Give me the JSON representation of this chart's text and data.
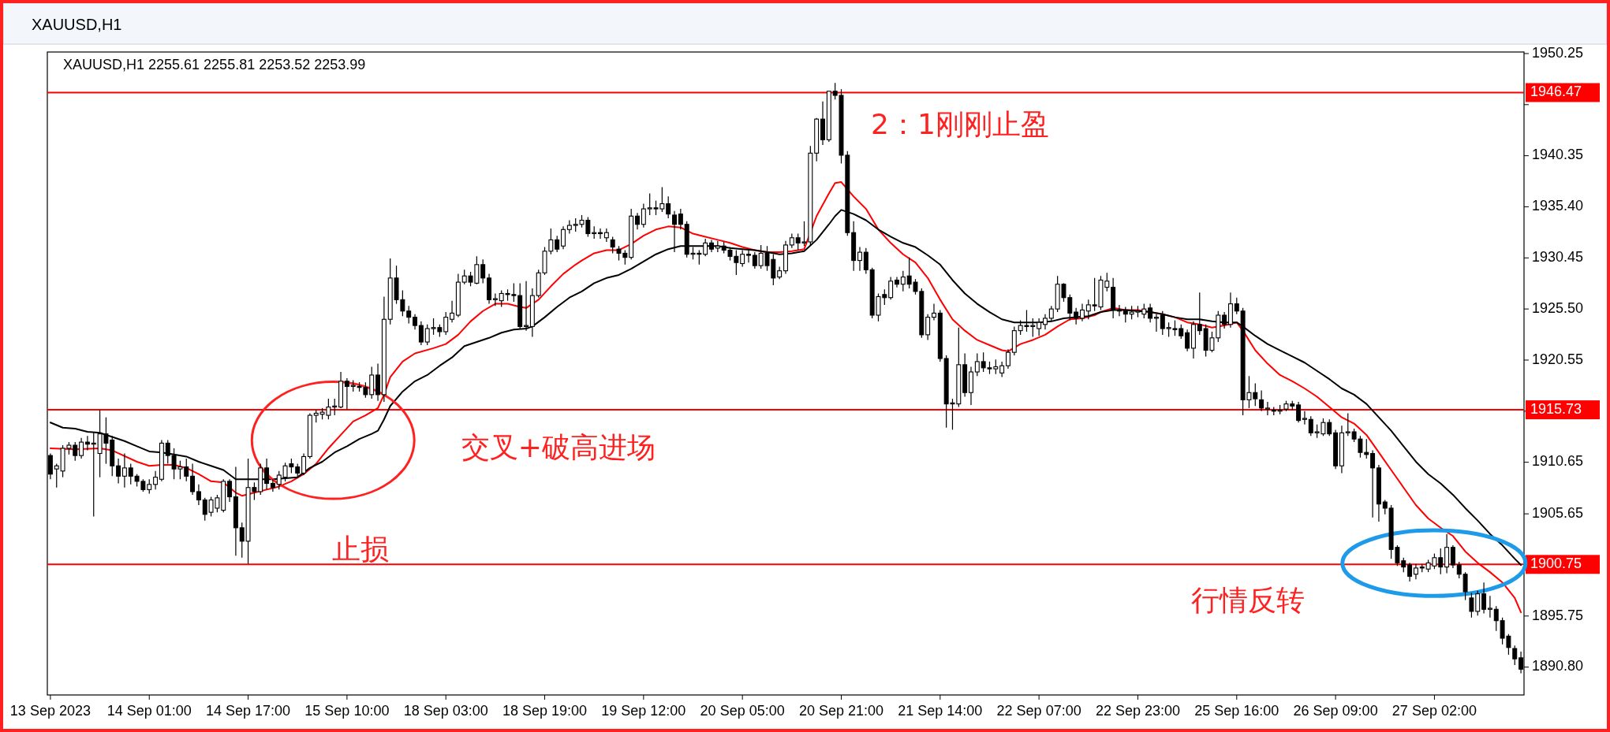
{
  "chart_data": {
    "type": "candlestick",
    "title": "XAUUSD,H1",
    "subtitle": "XAUUSD,H1 2255.61 2255.81 2253.52 2253.99",
    "categories": [
      "13 Sep 2023",
      null,
      null,
      null,
      null,
      null,
      null,
      null,
      null,
      null,
      null,
      null,
      null,
      null,
      null,
      null,
      "14 Sep 01:00",
      null,
      null,
      null,
      null,
      null,
      null,
      null,
      null,
      null,
      null,
      null,
      null,
      null,
      null,
      null,
      "14 Sep 17:00",
      null,
      null,
      null,
      null,
      null,
      null,
      null,
      null,
      null,
      null,
      null,
      null,
      null,
      null,
      null,
      "15 Sep 10:00",
      null,
      null,
      null,
      null,
      null,
      null,
      null,
      null,
      null,
      null,
      null,
      null,
      null,
      null,
      null,
      "18 Sep 03:00",
      null,
      null,
      null,
      null,
      null,
      null,
      null,
      null,
      null,
      null,
      null,
      null,
      null,
      null,
      null,
      "18 Sep 19:00",
      null,
      null,
      null,
      null,
      null,
      null,
      null,
      null,
      null,
      null,
      null,
      null,
      null,
      null,
      null,
      "19 Sep 12:00",
      null,
      null,
      null,
      null,
      null,
      null,
      null,
      null,
      null,
      null,
      null,
      null,
      null,
      null,
      null,
      "20 Sep 05:00",
      null,
      null,
      null,
      null,
      null,
      null,
      null,
      null,
      null,
      null,
      null,
      null,
      null,
      null,
      null,
      "20 Sep 21:00",
      null,
      null,
      null,
      null,
      null,
      null,
      null,
      null,
      null,
      null,
      null,
      null,
      null,
      null,
      null,
      "21 Sep 14:00",
      null,
      null,
      null,
      null,
      null,
      null,
      null,
      null,
      null,
      null,
      null,
      null,
      null,
      null,
      null,
      "22 Sep 07:00",
      null,
      null,
      null,
      null,
      null,
      null,
      null,
      null,
      null,
      null,
      null,
      null,
      null,
      null,
      null,
      "22 Sep 23:00",
      null,
      null,
      null,
      null,
      null,
      null,
      null,
      null,
      null,
      null,
      null,
      null,
      null,
      null,
      null,
      "25 Sep 16:00",
      null,
      null,
      null,
      null,
      null,
      null,
      null,
      null,
      null,
      null,
      null,
      null,
      null,
      null,
      null,
      "26 Sep 09:00",
      null,
      null,
      null,
      null,
      null,
      null,
      null,
      null,
      null,
      null,
      null,
      null,
      null,
      null,
      null,
      "27 Sep 02:00",
      null,
      null,
      null,
      null,
      null,
      null,
      null,
      null,
      null,
      null,
      null,
      null,
      null,
      null
    ],
    "ohlc": [
      [
        1911.3,
        1911.5,
        1909.0,
        1909.5
      ],
      [
        1910.0,
        1910.5,
        1908.2,
        1910.3
      ],
      [
        1909.8,
        1912.3,
        1909.2,
        1912.0
      ],
      [
        1912.0,
        1912.6,
        1911.4,
        1912.3
      ],
      [
        1912.3,
        1912.6,
        1910.8,
        1911.3
      ],
      [
        1911.3,
        1913.0,
        1911.0,
        1912.6
      ],
      [
        1912.6,
        1913.2,
        1911.8,
        1912.4
      ],
      [
        1912.4,
        1913.5,
        1905.4,
        1912.5
      ],
      [
        1911.5,
        1915.7,
        1909.2,
        1913.4
      ],
      [
        1913.4,
        1915.0,
        1910.5,
        1912.5
      ],
      [
        1912.8,
        1913.2,
        1909.3,
        1910.3
      ],
      [
        1910.3,
        1911.0,
        1908.6,
        1909.3
      ],
      [
        1909.3,
        1911.5,
        1908.2,
        1910.1
      ],
      [
        1910.1,
        1910.5,
        1908.5,
        1909.3
      ],
      [
        1909.3,
        1909.5,
        1908.3,
        1908.8
      ],
      [
        1908.8,
        1909.0,
        1907.8,
        1908.0
      ],
      [
        1908.0,
        1909.0,
        1907.6,
        1908.5
      ],
      [
        1908.5,
        1909.8,
        1908.0,
        1909.2
      ],
      [
        1909.0,
        1912.8,
        1908.8,
        1912.5
      ],
      [
        1912.5,
        1912.8,
        1910.5,
        1911.3
      ],
      [
        1911.3,
        1912.0,
        1909.0,
        1910.0
      ],
      [
        1910.0,
        1910.8,
        1909.0,
        1910.2
      ],
      [
        1910.2,
        1911.0,
        1908.8,
        1909.3
      ],
      [
        1909.3,
        1910.5,
        1907.5,
        1907.8
      ],
      [
        1907.8,
        1908.5,
        1906.5,
        1907.0
      ],
      [
        1907.0,
        1907.2,
        1905.0,
        1905.6
      ],
      [
        1905.8,
        1907.3,
        1905.4,
        1907.0
      ],
      [
        1906.2,
        1907.5,
        1905.8,
        1907.2
      ],
      [
        1906.0,
        1909.0,
        1905.8,
        1908.8
      ],
      [
        1908.8,
        1909.0,
        1906.8,
        1907.3
      ],
      [
        1907.3,
        1910.2,
        1901.6,
        1904.3
      ],
      [
        1904.3,
        1904.8,
        1901.4,
        1903.0
      ],
      [
        1903.0,
        1911.0,
        1900.8,
        1908.2
      ],
      [
        1908.2,
        1908.7,
        1907.0,
        1907.8
      ],
      [
        1907.8,
        1910.5,
        1907.5,
        1910.1
      ],
      [
        1910.1,
        1911.0,
        1908.0,
        1908.6
      ],
      [
        1908.6,
        1909.0,
        1907.8,
        1908.2
      ],
      [
        1908.5,
        1909.8,
        1908.0,
        1909.4
      ],
      [
        1909.2,
        1910.6,
        1908.8,
        1910.3
      ],
      [
        1910.5,
        1911.0,
        1909.6,
        1910.2
      ],
      [
        1910.2,
        1910.5,
        1909.2,
        1909.6
      ],
      [
        1909.6,
        1911.5,
        1909.4,
        1911.2
      ],
      [
        1911.2,
        1915.4,
        1911.0,
        1915.2
      ],
      [
        1915.2,
        1915.7,
        1914.5,
        1915.4
      ],
      [
        1915.3,
        1915.9,
        1914.8,
        1915.5
      ],
      [
        1915.2,
        1916.8,
        1914.8,
        1916.0
      ],
      [
        1916.0,
        1916.8,
        1915.2,
        1916.1
      ],
      [
        1916.0,
        1919.4,
        1915.9,
        1918.5
      ],
      [
        1918.5,
        1918.8,
        1915.8,
        1918.0
      ],
      [
        1918.0,
        1918.6,
        1917.5,
        1918.1
      ],
      [
        1918.0,
        1918.4,
        1917.5,
        1917.9
      ],
      [
        1917.9,
        1918.4,
        1916.9,
        1917.2
      ],
      [
        1917.2,
        1919.9,
        1916.8,
        1919.1
      ],
      [
        1919.1,
        1920.2,
        1916.6,
        1917.2
      ],
      [
        1917.2,
        1926.7,
        1916.5,
        1924.5
      ],
      [
        1924.5,
        1930.4,
        1924.0,
        1928.5
      ],
      [
        1928.5,
        1929.7,
        1926.0,
        1926.4
      ],
      [
        1926.4,
        1927.3,
        1924.8,
        1925.3
      ],
      [
        1925.3,
        1925.8,
        1924.1,
        1924.7
      ],
      [
        1924.7,
        1925.0,
        1923.5,
        1923.9
      ],
      [
        1923.9,
        1924.3,
        1922.0,
        1922.3
      ],
      [
        1922.3,
        1924.0,
        1922.0,
        1923.6
      ],
      [
        1923.6,
        1924.6,
        1923.0,
        1923.7
      ],
      [
        1923.7,
        1924.0,
        1922.8,
        1923.3
      ],
      [
        1923.3,
        1925.2,
        1923.0,
        1924.7
      ],
      [
        1924.5,
        1926.3,
        1924.2,
        1925.1
      ],
      [
        1924.9,
        1928.9,
        1924.7,
        1928.1
      ],
      [
        1928.1,
        1929.3,
        1927.9,
        1928.7
      ],
      [
        1928.7,
        1929.1,
        1927.7,
        1928.1
      ],
      [
        1928.0,
        1930.6,
        1927.9,
        1929.8
      ],
      [
        1929.8,
        1930.3,
        1928.0,
        1928.5
      ],
      [
        1928.5,
        1928.9,
        1926.0,
        1926.4
      ],
      [
        1926.4,
        1927.0,
        1925.8,
        1926.5
      ],
      [
        1926.3,
        1927.3,
        1925.7,
        1927.0
      ],
      [
        1927.0,
        1927.4,
        1926.3,
        1926.9
      ],
      [
        1926.9,
        1928.0,
        1926.2,
        1926.8
      ],
      [
        1926.8,
        1928.0,
        1923.6,
        1923.8
      ],
      [
        1923.8,
        1928.2,
        1923.4,
        1923.9
      ],
      [
        1923.8,
        1927.5,
        1922.8,
        1926.8
      ],
      [
        1926.8,
        1929.3,
        1926.6,
        1929.0
      ],
      [
        1929.0,
        1931.5,
        1928.8,
        1931.1
      ],
      [
        1931.1,
        1933.3,
        1930.8,
        1932.2
      ],
      [
        1932.2,
        1932.6,
        1931.0,
        1931.3
      ],
      [
        1931.6,
        1933.5,
        1931.3,
        1933.2
      ],
      [
        1933.2,
        1934.1,
        1932.8,
        1933.6
      ],
      [
        1933.6,
        1934.3,
        1933.0,
        1933.7
      ],
      [
        1933.7,
        1934.6,
        1933.4,
        1934.1
      ],
      [
        1934.1,
        1934.4,
        1932.5,
        1932.8
      ],
      [
        1932.8,
        1933.5,
        1932.3,
        1932.9
      ],
      [
        1932.9,
        1933.3,
        1932.3,
        1932.8
      ],
      [
        1932.4,
        1933.3,
        1932.0,
        1932.9
      ],
      [
        1932.2,
        1932.5,
        1930.9,
        1931.5
      ],
      [
        1931.3,
        1931.6,
        1930.2,
        1930.9
      ],
      [
        1930.9,
        1931.2,
        1929.8,
        1930.5
      ],
      [
        1930.5,
        1935.2,
        1930.3,
        1934.5
      ],
      [
        1934.5,
        1934.8,
        1933.2,
        1933.7
      ],
      [
        1933.7,
        1935.7,
        1933.4,
        1935.2
      ],
      [
        1935.2,
        1936.7,
        1934.6,
        1935.3
      ],
      [
        1935.3,
        1936.0,
        1934.6,
        1935.2
      ],
      [
        1935.2,
        1937.3,
        1934.9,
        1935.7
      ],
      [
        1935.7,
        1936.4,
        1934.3,
        1934.7
      ],
      [
        1934.6,
        1935.0,
        1931.0,
        1933.7
      ],
      [
        1934.7,
        1935.2,
        1933.2,
        1933.7
      ],
      [
        1933.7,
        1934.0,
        1930.5,
        1930.8
      ],
      [
        1930.8,
        1931.5,
        1930.3,
        1930.9
      ],
      [
        1930.9,
        1931.2,
        1929.8,
        1930.8
      ],
      [
        1930.8,
        1932.3,
        1930.6,
        1931.9
      ],
      [
        1931.9,
        1932.2,
        1931.0,
        1931.3
      ],
      [
        1931.4,
        1932.1,
        1931.0,
        1931.6
      ],
      [
        1931.6,
        1932.0,
        1930.9,
        1931.2
      ],
      [
        1931.2,
        1931.5,
        1930.2,
        1930.6
      ],
      [
        1930.6,
        1931.2,
        1928.8,
        1930.0
      ],
      [
        1929.9,
        1931.2,
        1929.6,
        1930.8
      ],
      [
        1930.8,
        1931.3,
        1930.0,
        1930.7
      ],
      [
        1930.7,
        1931.0,
        1929.4,
        1929.7
      ],
      [
        1929.7,
        1931.7,
        1929.4,
        1930.9
      ],
      [
        1930.9,
        1931.6,
        1929.2,
        1929.7
      ],
      [
        1930.3,
        1930.8,
        1927.8,
        1928.5
      ],
      [
        1928.6,
        1929.6,
        1928.4,
        1929.2
      ],
      [
        1929.2,
        1932.1,
        1928.9,
        1931.7
      ],
      [
        1931.7,
        1932.8,
        1931.4,
        1932.4
      ],
      [
        1932.4,
        1932.8,
        1931.2,
        1931.9
      ],
      [
        1931.9,
        1934.0,
        1931.6,
        1932.0
      ],
      [
        1932.0,
        1941.3,
        1931.7,
        1940.6
      ],
      [
        1940.6,
        1944.0,
        1939.8,
        1943.9
      ],
      [
        1943.9,
        1945.6,
        1941.4,
        1941.9
      ],
      [
        1941.9,
        1946.6,
        1941.7,
        1946.6
      ],
      [
        1946.6,
        1947.4,
        1945.8,
        1946.2
      ],
      [
        1946.2,
        1946.8,
        1939.6,
        1940.4
      ],
      [
        1940.4,
        1940.8,
        1932.6,
        1932.9
      ],
      [
        1932.9,
        1934.0,
        1929.2,
        1930.2
      ],
      [
        1930.2,
        1931.5,
        1929.2,
        1931.0
      ],
      [
        1931.0,
        1931.4,
        1928.9,
        1929.3
      ],
      [
        1929.3,
        1929.5,
        1924.6,
        1924.9
      ],
      [
        1924.9,
        1927.0,
        1924.3,
        1926.7
      ],
      [
        1926.9,
        1927.4,
        1925.9,
        1926.6
      ],
      [
        1926.6,
        1928.6,
        1926.4,
        1928.2
      ],
      [
        1928.3,
        1928.6,
        1927.6,
        1927.9
      ],
      [
        1927.9,
        1929.2,
        1927.2,
        1928.6
      ],
      [
        1928.7,
        1930.5,
        1927.5,
        1927.9
      ],
      [
        1928.1,
        1928.4,
        1926.9,
        1927.2
      ],
      [
        1927.2,
        1927.5,
        1922.7,
        1923.0
      ],
      [
        1923.0,
        1925.0,
        1922.5,
        1924.7
      ],
      [
        1924.7,
        1926.0,
        1924.4,
        1925.1
      ],
      [
        1925.1,
        1925.4,
        1920.4,
        1920.7
      ],
      [
        1920.7,
        1921.0,
        1914.0,
        1916.3
      ],
      [
        1916.3,
        1916.8,
        1913.8,
        1916.4
      ],
      [
        1916.3,
        1923.7,
        1916.0,
        1920.1
      ],
      [
        1920.1,
        1921.2,
        1917.0,
        1917.4
      ],
      [
        1917.4,
        1919.9,
        1916.2,
        1919.4
      ],
      [
        1919.4,
        1921.2,
        1919.0,
        1920.4
      ],
      [
        1920.4,
        1921.3,
        1919.4,
        1919.8
      ],
      [
        1919.8,
        1920.4,
        1919.2,
        1919.7
      ],
      [
        1919.7,
        1920.6,
        1919.2,
        1919.9
      ],
      [
        1919.3,
        1920.4,
        1918.9,
        1920.0
      ],
      [
        1920.0,
        1921.6,
        1919.7,
        1921.3
      ],
      [
        1921.3,
        1923.8,
        1921.0,
        1923.4
      ],
      [
        1923.4,
        1924.4,
        1923.0,
        1923.9
      ],
      [
        1923.9,
        1925.4,
        1923.3,
        1923.8
      ],
      [
        1923.8,
        1924.6,
        1922.8,
        1923.9
      ],
      [
        1923.6,
        1924.6,
        1922.9,
        1924.2
      ],
      [
        1924.0,
        1925.0,
        1923.5,
        1924.6
      ],
      [
        1924.6,
        1925.8,
        1924.3,
        1925.5
      ],
      [
        1925.5,
        1928.7,
        1925.2,
        1927.9
      ],
      [
        1927.9,
        1928.0,
        1926.2,
        1926.6
      ],
      [
        1926.6,
        1926.9,
        1924.4,
        1925.1
      ],
      [
        1925.2,
        1925.6,
        1924.0,
        1924.6
      ],
      [
        1924.6,
        1926.0,
        1924.3,
        1925.4
      ],
      [
        1925.3,
        1926.4,
        1924.5,
        1925.9
      ],
      [
        1925.9,
        1928.5,
        1925.3,
        1925.8
      ],
      [
        1925.7,
        1928.7,
        1925.4,
        1928.3
      ],
      [
        1927.6,
        1929.0,
        1927.2,
        1928.2
      ],
      [
        1927.6,
        1928.5,
        1924.6,
        1925.4
      ],
      [
        1925.4,
        1925.9,
        1924.8,
        1925.3
      ],
      [
        1925.4,
        1925.7,
        1924.2,
        1925.0
      ],
      [
        1925.0,
        1925.8,
        1924.5,
        1925.2
      ],
      [
        1925.2,
        1925.8,
        1924.7,
        1925.3
      ],
      [
        1925.0,
        1926.0,
        1924.6,
        1925.5
      ],
      [
        1925.6,
        1926.0,
        1924.2,
        1924.6
      ],
      [
        1924.6,
        1925.0,
        1923.3,
        1924.7
      ],
      [
        1924.9,
        1925.3,
        1923.0,
        1923.6
      ],
      [
        1923.6,
        1924.2,
        1922.8,
        1923.7
      ],
      [
        1923.6,
        1924.4,
        1922.9,
        1923.5
      ],
      [
        1923.6,
        1924.0,
        1922.6,
        1922.9
      ],
      [
        1923.2,
        1923.5,
        1921.4,
        1921.7
      ],
      [
        1921.7,
        1924.3,
        1920.7,
        1924.0
      ],
      [
        1924.0,
        1927.1,
        1923.0,
        1923.4
      ],
      [
        1923.6,
        1924.0,
        1920.9,
        1921.5
      ],
      [
        1921.5,
        1923.3,
        1921.3,
        1922.7
      ],
      [
        1922.7,
        1925.3,
        1922.3,
        1924.9
      ],
      [
        1924.9,
        1925.2,
        1923.6,
        1924.0
      ],
      [
        1924.0,
        1927.1,
        1923.7,
        1926.0
      ],
      [
        1926.0,
        1926.6,
        1925.0,
        1925.3
      ],
      [
        1925.3,
        1925.6,
        1915.2,
        1916.7
      ],
      [
        1916.7,
        1919.0,
        1915.9,
        1917.4
      ],
      [
        1917.4,
        1918.3,
        1916.1,
        1916.8
      ],
      [
        1916.7,
        1917.6,
        1915.6,
        1915.9
      ],
      [
        1915.8,
        1916.5,
        1915.2,
        1915.9
      ],
      [
        1915.7,
        1916.0,
        1915.2,
        1915.6
      ],
      [
        1915.6,
        1916.2,
        1915.3,
        1915.7
      ],
      [
        1915.8,
        1916.6,
        1915.6,
        1916.3
      ],
      [
        1916.3,
        1916.6,
        1915.7,
        1916.1
      ],
      [
        1916.2,
        1916.5,
        1914.5,
        1914.7
      ],
      [
        1914.8,
        1915.6,
        1914.3,
        1914.9
      ],
      [
        1914.8,
        1915.1,
        1913.2,
        1913.5
      ],
      [
        1913.5,
        1914.3,
        1913.0,
        1913.6
      ],
      [
        1913.4,
        1914.9,
        1913.2,
        1914.5
      ],
      [
        1914.5,
        1914.8,
        1913.2,
        1913.4
      ],
      [
        1913.5,
        1913.8,
        1910.0,
        1910.3
      ],
      [
        1910.3,
        1914.2,
        1909.6,
        1913.5
      ],
      [
        1913.5,
        1915.4,
        1913.2,
        1913.6
      ],
      [
        1913.6,
        1913.9,
        1912.6,
        1912.9
      ],
      [
        1912.9,
        1913.2,
        1911.1,
        1911.6
      ],
      [
        1911.6,
        1912.9,
        1911.0,
        1911.4
      ],
      [
        1911.5,
        1911.8,
        1905.3,
        1910.1
      ],
      [
        1910.1,
        1910.4,
        1904.9,
        1906.6
      ],
      [
        1906.8,
        1907.0,
        1905.6,
        1906.2
      ],
      [
        1906.2,
        1906.5,
        1901.3,
        1902.2
      ],
      [
        1902.4,
        1902.6,
        1900.6,
        1900.9
      ],
      [
        1901.1,
        1901.4,
        1900.0,
        1900.5
      ],
      [
        1900.7,
        1900.9,
        1899.1,
        1899.6
      ],
      [
        1899.8,
        1900.8,
        1899.3,
        1900.4
      ],
      [
        1900.5,
        1900.8,
        1900.0,
        1900.4
      ],
      [
        1900.3,
        1901.2,
        1900.0,
        1900.9
      ],
      [
        1900.6,
        1901.8,
        1900.3,
        1901.4
      ],
      [
        1901.4,
        1902.3,
        1899.8,
        1900.5
      ],
      [
        1900.5,
        1903.7,
        1899.9,
        1902.4
      ],
      [
        1902.4,
        1902.6,
        1900.4,
        1900.7
      ],
      [
        1900.7,
        1901.0,
        1899.4,
        1899.8
      ],
      [
        1899.8,
        1900.0,
        1897.3,
        1898.1
      ],
      [
        1897.5,
        1898.0,
        1895.6,
        1896.2
      ],
      [
        1896.2,
        1898.2,
        1895.8,
        1897.9
      ],
      [
        1897.9,
        1899.0,
        1896.0,
        1896.4
      ],
      [
        1896.4,
        1897.7,
        1895.6,
        1896.5
      ],
      [
        1896.4,
        1896.7,
        1894.3,
        1895.3
      ],
      [
        1895.3,
        1895.6,
        1893.0,
        1893.6
      ],
      [
        1893.8,
        1894.0,
        1892.0,
        1892.7
      ],
      [
        1892.6,
        1892.9,
        1891.0,
        1891.6
      ],
      [
        1891.7,
        1892.3,
        1890.2,
        1890.6
      ]
    ],
    "series": [
      {
        "type": "line",
        "color": "#ff0000",
        "values": [
          1912.0,
          null,
          null,
          null,
          1911.9,
          null,
          null,
          null,
          1912.0,
          null,
          1911.8,
          null,
          null,
          null,
          1910.7,
          null,
          1910.3,
          null,
          1910.4,
          null,
          1910.4,
          null,
          1910.1,
          null,
          1909.5,
          null,
          1908.8,
          null,
          1908.7,
          null,
          1907.7,
          1907.4,
          null,
          1907.7,
          null,
          1908.0,
          null,
          1908.3,
          null,
          1908.8,
          null,
          1909.5,
          null,
          1910.5,
          null,
          1912.0,
          null,
          1913.3,
          null,
          1914.6,
          null,
          1915.2,
          null,
          1915.9,
          1917.2,
          1918.9,
          null,
          1920.4,
          null,
          1921.2,
          null,
          null,
          1921.7,
          null,
          1922.1,
          null,
          1923.0,
          null,
          1924.3,
          null,
          1925.3,
          null,
          1926.0,
          null,
          1926.0,
          null,
          1925.7,
          1925.6,
          null,
          1926.4,
          null,
          1927.7,
          null,
          1928.9,
          null,
          1929.8,
          1930.2,
          null,
          1930.9,
          null,
          1931.2,
          null,
          1931.2,
          null,
          1931.8,
          null,
          1932.6,
          null,
          1933.2,
          null,
          1933.5,
          null,
          1933.4,
          null,
          1932.8,
          null,
          1932.5,
          null,
          1932.2,
          null,
          1931.9,
          null,
          1931.5,
          null,
          1931.2,
          null,
          1931.0,
          null,
          1931.0,
          null,
          1931.1,
          null,
          1931.3,
          null,
          1934.5,
          null,
          1936.7,
          1937.7,
          1937.8,
          null,
          1936.4,
          null,
          1935.2,
          null,
          1933.2,
          null,
          1931.9,
          null,
          1930.8,
          null,
          1930.0,
          null,
          1928.5,
          null,
          1926.4,
          null,
          1924.5,
          null,
          1923.4,
          null,
          1922.5,
          null,
          1922.0,
          null,
          1921.5,
          1921.4,
          null,
          1922.1,
          null,
          1922.5,
          null,
          1923.0,
          null,
          1923.8,
          null,
          1924.5,
          null,
          1924.6,
          null,
          1924.9,
          1925.2,
          null,
          1925.6,
          null,
          1925.4,
          null,
          1925.4,
          null,
          1925.2,
          null,
          1925.0,
          null,
          1924.7,
          null,
          1924.2,
          null,
          1924.0,
          null,
          1923.7,
          null,
          1923.9,
          null,
          1924.2,
          1923.4,
          null,
          1921.5,
          null,
          1920.2,
          null,
          1919.1,
          null,
          1918.5,
          null,
          1917.8,
          null,
          1917.0,
          null,
          1916.0,
          null,
          1915.0,
          null,
          1914.4,
          null,
          1913.3,
          null,
          1911.6,
          null,
          1909.9,
          null,
          1908.2,
          null,
          1906.5,
          null,
          1905.2,
          null,
          1904.3,
          null,
          1903.5,
          null,
          1902.0,
          null,
          1900.9,
          null,
          1900.0,
          null,
          1899.0,
          null,
          1897.5,
          1896.1
        ]
      },
      {
        "type": "line",
        "color": "#000000",
        "values": [
          1914.5,
          null,
          1914.0,
          null,
          1913.9,
          null,
          1913.6,
          null,
          1913.5,
          null,
          1913.1,
          null,
          1912.7,
          null,
          1912.2,
          null,
          1911.7,
          null,
          1911.6,
          null,
          1911.4,
          null,
          1911.2,
          null,
          1910.7,
          null,
          1910.3,
          null,
          1909.9,
          null,
          1909.0,
          null,
          1909.0,
          null,
          1909.0,
          null,
          1909.0,
          null,
          1909.1,
          null,
          1909.2,
          null,
          1910.1,
          null,
          1910.7,
          null,
          1911.6,
          null,
          1912.2,
          null,
          1912.9,
          null,
          1913.4,
          1913.7,
          1914.8,
          1916.1,
          null,
          1917.5,
          null,
          1918.5,
          null,
          1919.1,
          null,
          1920.0,
          null,
          1920.8,
          null,
          1921.9,
          null,
          1922.3,
          null,
          1922.7,
          null,
          1923.2,
          null,
          1923.5,
          null,
          1923.6,
          1923.8,
          null,
          1924.7,
          null,
          1925.7,
          null,
          1926.6,
          null,
          1927.2,
          null,
          1928.0,
          null,
          1928.5,
          null,
          1928.8,
          null,
          1929.4,
          null,
          1930.1,
          null,
          1930.8,
          null,
          1931.3,
          null,
          1931.6,
          null,
          1931.6,
          null,
          1931.6,
          null,
          1931.6,
          null,
          1931.4,
          null,
          1931.3,
          null,
          1931.2,
          null,
          1931.0,
          null,
          1930.8,
          null,
          1930.9,
          null,
          1931.1,
          null,
          1932.2,
          null,
          1933.7,
          1934.5,
          1935.1,
          null,
          1934.7,
          null,
          1934.1,
          null,
          1933.2,
          null,
          1932.5,
          null,
          1931.9,
          null,
          1931.5,
          null,
          1930.7,
          null,
          1929.8,
          null,
          1928.3,
          null,
          1927.0,
          null,
          1926.0,
          null,
          1925.2,
          null,
          1924.5,
          null,
          1924.2,
          null,
          1924.2,
          null,
          1924.2,
          null,
          1924.3,
          null,
          1924.6,
          null,
          1924.7,
          null,
          1924.8,
          null,
          1925.2,
          null,
          1925.4,
          null,
          1925.4,
          null,
          1925.3,
          null,
          1925.2,
          null,
          1925.0,
          null,
          1924.7,
          null,
          1924.5,
          null,
          1924.5,
          null,
          1924.3,
          null,
          1924.2,
          null,
          1924.2,
          1923.8,
          null,
          1922.9,
          null,
          1922.1,
          null,
          1921.5,
          null,
          1920.9,
          null,
          1920.3,
          null,
          1919.5,
          null,
          1918.7,
          null,
          1917.8,
          null,
          1917.2,
          null,
          1916.3,
          null,
          1915.0,
          null,
          1913.7,
          null,
          1912.2,
          null,
          1910.7,
          null,
          1909.5,
          null,
          1908.6,
          null,
          1907.5,
          null,
          1906.2,
          null,
          1905.0,
          null,
          1903.7,
          null,
          1902.6,
          null,
          1901.3,
          1900.7
        ]
      }
    ],
    "ylim": [
      1888.1,
      1950.4
    ],
    "yticks": [
      1950.25,
      {
        "value": 1945.3,
        "label": null
      },
      1940.35,
      {
        "value": 1935.4,
        "label": "1935.40"
      },
      1930.45,
      {
        "value": 1925.5,
        "label": "1925.50"
      },
      1920.55,
      {
        "value": 1915.6,
        "label": null
      },
      1910.65,
      1905.65,
      {
        "value": 1900.7,
        "label": null
      },
      1895.75,
      {
        "value": 1890.8,
        "label": "1890.80"
      }
    ],
    "ref_lines": [
      {
        "axis": "y",
        "value": 1946.47,
        "label": "1946.47",
        "color": "#ff0000"
      },
      {
        "axis": "y",
        "value": 1915.73,
        "label": "1915.73",
        "color": "#ff0000"
      },
      {
        "axis": "y",
        "value": 1900.75,
        "label": "1900.75",
        "color": "#ff0000"
      }
    ],
    "annotations": [
      "交叉+破高进场",
      "止损",
      "2：1刚刚止盈",
      "行情反转"
    ]
  }
}
